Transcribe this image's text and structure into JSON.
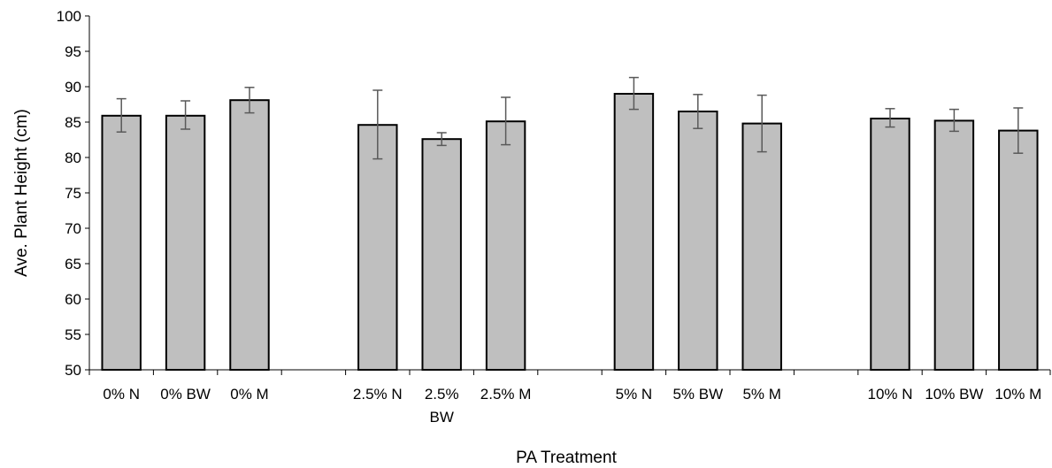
{
  "chart_data": {
    "type": "bar",
    "title": "",
    "xlabel": "PA Treatment",
    "ylabel": "Ave. Plant Height (cm)",
    "ylim": [
      50,
      100
    ],
    "ytick_step": 5,
    "grid": false,
    "legend": "none",
    "groups": [
      {
        "categories": [
          "0% N",
          "0% BW",
          "0% M"
        ]
      },
      {
        "categories": [
          "2.5% N",
          "2.5% BW",
          "2.5% M"
        ]
      },
      {
        "categories": [
          "5% N",
          "5% BW",
          "5% M"
        ]
      },
      {
        "categories": [
          "10% N",
          "10% BW",
          "10% M"
        ]
      }
    ],
    "categories": [
      "0% N",
      "0% BW",
      "0% M",
      "2.5% N",
      "2.5% BW",
      "2.5% M",
      "5% N",
      "5% BW",
      "5% M",
      "10% N",
      "10% BW",
      "10% M"
    ],
    "values": [
      85.9,
      85.9,
      88.1,
      84.6,
      82.6,
      85.1,
      89.0,
      86.5,
      84.8,
      85.5,
      85.2,
      83.8
    ],
    "error_low": [
      83.6,
      84.0,
      86.3,
      79.8,
      81.7,
      81.8,
      86.8,
      84.1,
      80.8,
      84.3,
      83.7,
      80.6
    ],
    "error_high": [
      88.3,
      88.0,
      89.9,
      89.5,
      83.5,
      88.5,
      91.3,
      88.9,
      88.8,
      86.9,
      86.8,
      87.0
    ],
    "colors": {
      "bar_fill": "#bfbfbf",
      "bar_stroke": "#000000",
      "error_bar": "#595959"
    }
  }
}
